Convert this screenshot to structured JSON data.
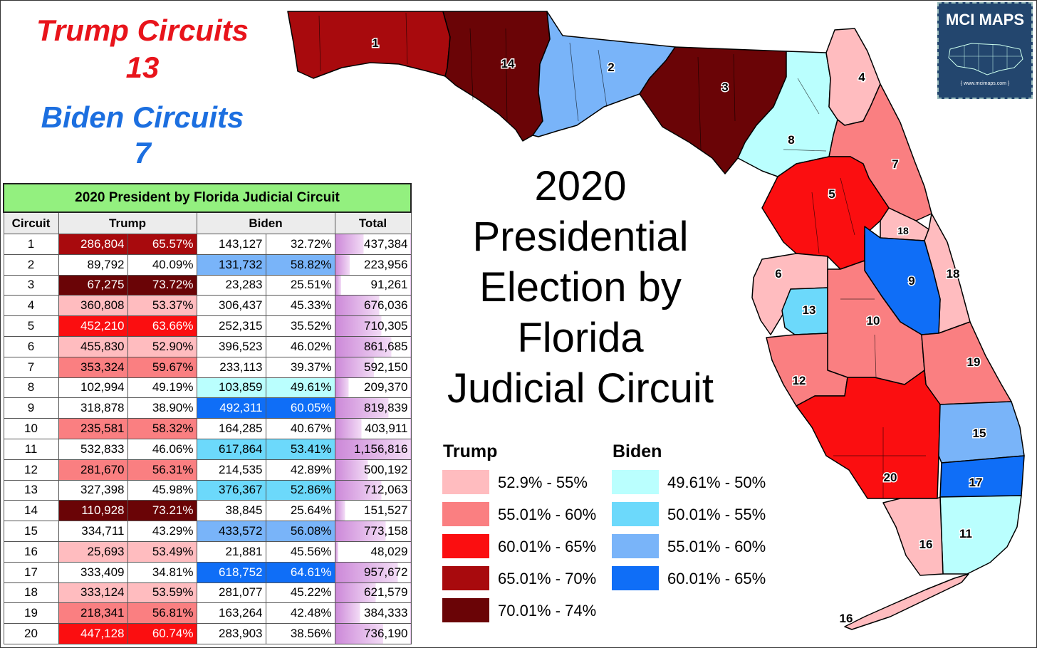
{
  "header": {
    "trump_label": "Trump Circuits",
    "trump_count": "13",
    "biden_label": "Biden Circuits",
    "biden_count": "7"
  },
  "map_title": [
    "2020",
    "Presidential",
    "Election by",
    "Florida",
    "Judicial Circuit"
  ],
  "logo": {
    "name": "MCI MAPS",
    "url": "{ www.mcimaps.com }"
  },
  "table": {
    "title": "2020 President by Florida Judicial Circuit",
    "columns": [
      "Circuit",
      "Trump",
      "Biden",
      "Total"
    ],
    "rows": [
      {
        "circuit": "1",
        "trump_votes": "286,804",
        "trump_pct": "65.57%",
        "biden_votes": "143,127",
        "biden_pct": "32.72%",
        "total": "437,384"
      },
      {
        "circuit": "2",
        "trump_votes": "89,792",
        "trump_pct": "40.09%",
        "biden_votes": "131,732",
        "biden_pct": "58.82%",
        "total": "223,956"
      },
      {
        "circuit": "3",
        "trump_votes": "67,275",
        "trump_pct": "73.72%",
        "biden_votes": "23,283",
        "biden_pct": "25.51%",
        "total": "91,261"
      },
      {
        "circuit": "4",
        "trump_votes": "360,808",
        "trump_pct": "53.37%",
        "biden_votes": "306,437",
        "biden_pct": "45.33%",
        "total": "676,036"
      },
      {
        "circuit": "5",
        "trump_votes": "452,210",
        "trump_pct": "63.66%",
        "biden_votes": "252,315",
        "biden_pct": "35.52%",
        "total": "710,305"
      },
      {
        "circuit": "6",
        "trump_votes": "455,830",
        "trump_pct": "52.90%",
        "biden_votes": "396,523",
        "biden_pct": "46.02%",
        "total": "861,685"
      },
      {
        "circuit": "7",
        "trump_votes": "353,324",
        "trump_pct": "59.67%",
        "biden_votes": "233,113",
        "biden_pct": "39.37%",
        "total": "592,150"
      },
      {
        "circuit": "8",
        "trump_votes": "102,994",
        "trump_pct": "49.19%",
        "biden_votes": "103,859",
        "biden_pct": "49.61%",
        "total": "209,370"
      },
      {
        "circuit": "9",
        "trump_votes": "318,878",
        "trump_pct": "38.90%",
        "biden_votes": "492,311",
        "biden_pct": "60.05%",
        "total": "819,839"
      },
      {
        "circuit": "10",
        "trump_votes": "235,581",
        "trump_pct": "58.32%",
        "biden_votes": "164,285",
        "biden_pct": "40.67%",
        "total": "403,911"
      },
      {
        "circuit": "11",
        "trump_votes": "532,833",
        "trump_pct": "46.06%",
        "biden_votes": "617,864",
        "biden_pct": "53.41%",
        "total": "1,156,816"
      },
      {
        "circuit": "12",
        "trump_votes": "281,670",
        "trump_pct": "56.31%",
        "biden_votes": "214,535",
        "biden_pct": "42.89%",
        "total": "500,192"
      },
      {
        "circuit": "13",
        "trump_votes": "327,398",
        "trump_pct": "45.98%",
        "biden_votes": "376,367",
        "biden_pct": "52.86%",
        "total": "712,063"
      },
      {
        "circuit": "14",
        "trump_votes": "110,928",
        "trump_pct": "73.21%",
        "biden_votes": "38,845",
        "biden_pct": "25.64%",
        "total": "151,527"
      },
      {
        "circuit": "15",
        "trump_votes": "334,711",
        "trump_pct": "43.29%",
        "biden_votes": "433,572",
        "biden_pct": "56.08%",
        "total": "773,158"
      },
      {
        "circuit": "16",
        "trump_votes": "25,693",
        "trump_pct": "53.49%",
        "biden_votes": "21,881",
        "biden_pct": "45.56%",
        "total": "48,029"
      },
      {
        "circuit": "17",
        "trump_votes": "333,409",
        "trump_pct": "34.81%",
        "biden_votes": "618,752",
        "biden_pct": "64.61%",
        "total": "957,672"
      },
      {
        "circuit": "18",
        "trump_votes": "333,124",
        "trump_pct": "53.59%",
        "biden_votes": "281,077",
        "biden_pct": "45.22%",
        "total": "621,579"
      },
      {
        "circuit": "19",
        "trump_votes": "218,341",
        "trump_pct": "56.81%",
        "biden_votes": "163,264",
        "biden_pct": "42.48%",
        "total": "384,333"
      },
      {
        "circuit": "20",
        "trump_votes": "447,128",
        "trump_pct": "60.74%",
        "biden_votes": "283,903",
        "biden_pct": "38.56%",
        "total": "736,190"
      }
    ]
  },
  "legend": {
    "trump_heading": "Trump",
    "biden_heading": "Biden",
    "trump_bins": [
      {
        "label": "52.9% - 55%",
        "color": "#ffbcbf"
      },
      {
        "label": "55.01% - 60%",
        "color": "#fa7f81"
      },
      {
        "label": "60.01% - 65%",
        "color": "#fb0e10"
      },
      {
        "label": "65.01% - 70%",
        "color": "#a80a0d"
      },
      {
        "label": "70.01% - 74%",
        "color": "#6a0406"
      }
    ],
    "biden_bins": [
      {
        "label": "49.61% - 50%",
        "color": "#bafffe"
      },
      {
        "label": "50.01% - 55%",
        "color": "#6cd9fb"
      },
      {
        "label": "55.01% - 60%",
        "color": "#79b4f9"
      },
      {
        "label": "60.01% - 65%",
        "color": "#0f6ef7"
      }
    ]
  },
  "map_labels": [
    "1",
    "2",
    "3",
    "4",
    "5",
    "6",
    "7",
    "8",
    "9",
    "10",
    "11",
    "12",
    "13",
    "14",
    "15",
    "16",
    "17",
    "18",
    "18",
    "19",
    "20",
    "16"
  ],
  "colors": {
    "trump_cell": {
      "red_light": "#ffbcbf",
      "red_mid": "#fa7f81",
      "red": "#fb0e10",
      "red_dark": "#a80a0d",
      "red_darkest": "#6a0406"
    },
    "biden_cell": {
      "blue_light": "#bafffe",
      "blue_mid": "#6cd9fb",
      "blue": "#79b4f9",
      "blue_dark": "#0f6ef7"
    },
    "total_bar": "#cc88d8"
  }
}
